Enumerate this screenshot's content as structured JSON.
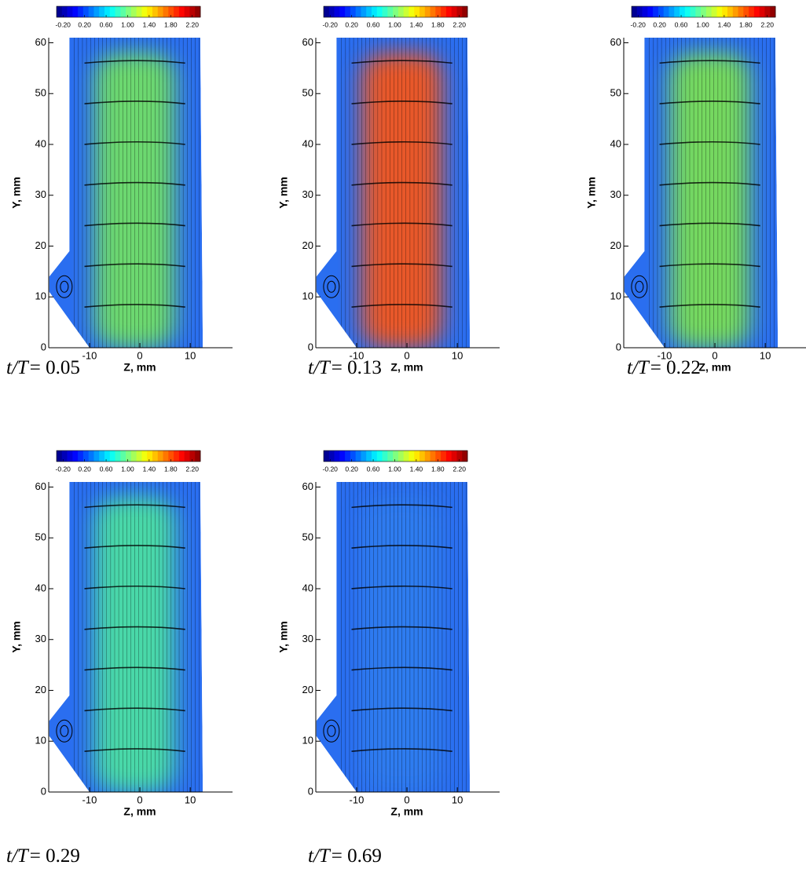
{
  "chart_data": [
    {
      "type": "contour",
      "xlabel": "Z, mm",
      "ylabel": "Y, mm",
      "xlim": [
        -18.1,
        18.4
      ],
      "ylim": [
        0,
        61
      ],
      "xticks": [
        -10,
        0,
        10
      ],
      "yticks": [
        0,
        10,
        20,
        30,
        40,
        50,
        60
      ],
      "clim": [
        -0.32,
        2.35
      ],
      "cticks": [
        {
          "value": -0.2,
          "label": "-0.20"
        },
        {
          "value": 0.2,
          "label": "0.20"
        },
        {
          "value": 0.6,
          "label": "0.60"
        },
        {
          "value": 1.0,
          "label": "1.00"
        },
        {
          "value": 1.4,
          "label": "1.40"
        },
        {
          "value": 1.8,
          "label": "1.80"
        },
        {
          "value": 2.2,
          "label": "2.20"
        }
      ],
      "core_color": "#6cd870",
      "caption_var": "t/T",
      "caption_value": "= 0.05"
    },
    {
      "type": "contour",
      "xlabel": "Z, mm",
      "ylabel": "Y, mm",
      "xlim": [
        -18.1,
        18.4
      ],
      "ylim": [
        0,
        61
      ],
      "xticks": [
        -10,
        0,
        10
      ],
      "yticks": [
        0,
        10,
        20,
        30,
        40,
        50,
        60
      ],
      "clim": [
        -0.32,
        2.35
      ],
      "cticks": [
        {
          "value": -0.2,
          "label": "-0.20"
        },
        {
          "value": 0.2,
          "label": "0.20"
        },
        {
          "value": 0.6,
          "label": "0.60"
        },
        {
          "value": 1.0,
          "label": "1.00"
        },
        {
          "value": 1.4,
          "label": "1.40"
        },
        {
          "value": 1.8,
          "label": "1.80"
        },
        {
          "value": 2.2,
          "label": "2.20"
        }
      ],
      "core_color": "#e8582a",
      "caption_var": "t/T",
      "caption_value": "= 0.13"
    },
    {
      "type": "contour",
      "xlabel": "Z, mm",
      "ylabel": "Y, mm",
      "xlim": [
        -18.1,
        18.4
      ],
      "ylim": [
        0,
        61
      ],
      "xticks": [
        -10,
        0,
        10
      ],
      "yticks": [
        0,
        10,
        20,
        30,
        40,
        50,
        60
      ],
      "clim": [
        -0.32,
        2.35
      ],
      "cticks": [
        {
          "value": -0.2,
          "label": "-0.20"
        },
        {
          "value": 0.2,
          "label": "0.20"
        },
        {
          "value": 0.6,
          "label": "0.60"
        },
        {
          "value": 1.0,
          "label": "1.00"
        },
        {
          "value": 1.4,
          "label": "1.40"
        },
        {
          "value": 1.8,
          "label": "1.80"
        },
        {
          "value": 2.2,
          "label": "2.20"
        }
      ],
      "core_color": "#74d860",
      "caption_var": "t/T",
      "caption_value": "= 0.22"
    },
    {
      "type": "contour",
      "xlabel": "Z, mm",
      "ylabel": "Y, mm",
      "xlim": [
        -18.1,
        18.4
      ],
      "ylim": [
        0,
        61
      ],
      "xticks": [
        -10,
        0,
        10
      ],
      "yticks": [
        0,
        10,
        20,
        30,
        40,
        50,
        60
      ],
      "clim": [
        -0.32,
        2.35
      ],
      "cticks": [
        {
          "value": -0.2,
          "label": "-0.20"
        },
        {
          "value": 0.2,
          "label": "0.20"
        },
        {
          "value": 0.6,
          "label": "0.60"
        },
        {
          "value": 1.0,
          "label": "1.00"
        },
        {
          "value": 1.4,
          "label": "1.40"
        },
        {
          "value": 1.8,
          "label": "1.80"
        },
        {
          "value": 2.2,
          "label": "2.20"
        }
      ],
      "core_color": "#48d8a8",
      "caption_var": "t/T",
      "caption_value": "= 0.29"
    },
    {
      "type": "contour",
      "xlabel": "Z, mm",
      "ylabel": "Y, mm",
      "xlim": [
        -18.1,
        18.4
      ],
      "ylim": [
        0,
        61
      ],
      "xticks": [
        -10,
        0,
        10
      ],
      "yticks": [
        0,
        10,
        20,
        30,
        40,
        50,
        60
      ],
      "clim": [
        -0.32,
        2.35
      ],
      "cticks": [
        {
          "value": -0.2,
          "label": "-0.20"
        },
        {
          "value": 0.2,
          "label": "0.20"
        },
        {
          "value": 0.6,
          "label": "0.60"
        },
        {
          "value": 1.0,
          "label": "1.00"
        },
        {
          "value": 1.4,
          "label": "1.40"
        },
        {
          "value": 1.8,
          "label": "1.80"
        },
        {
          "value": 2.2,
          "label": "2.20"
        }
      ],
      "core_color": "#2f7cf0",
      "caption_var": "t/T",
      "caption_value": "= 0.69"
    }
  ]
}
